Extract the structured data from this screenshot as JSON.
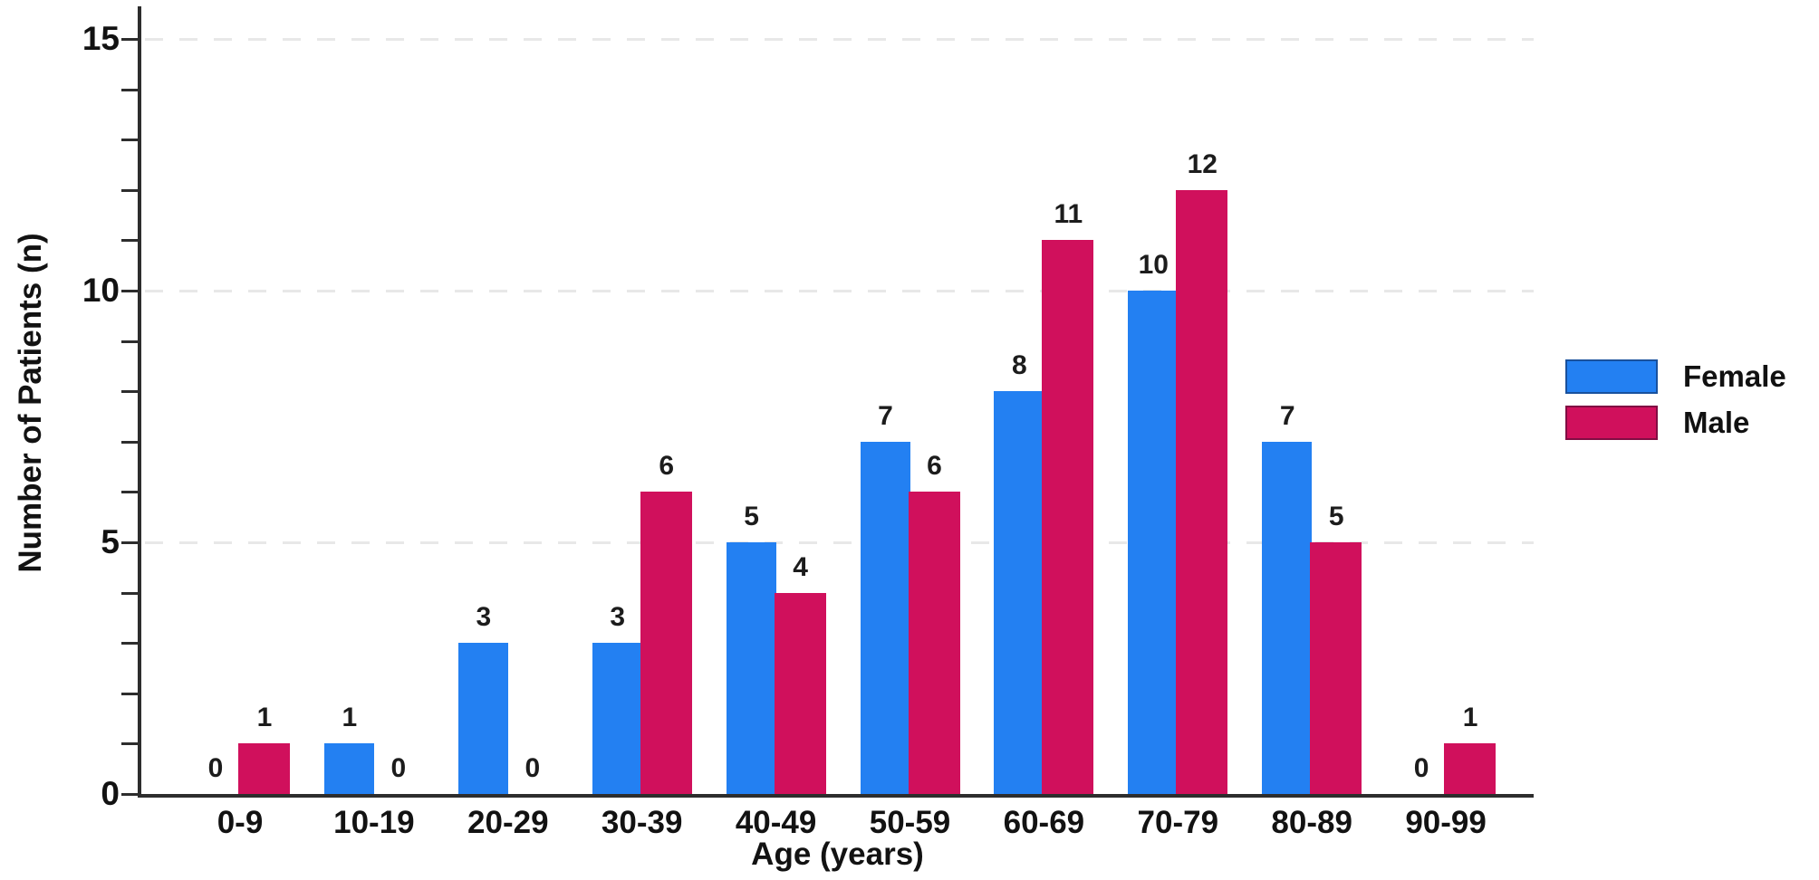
{
  "chart_data": {
    "type": "bar",
    "title": "",
    "xlabel": "Age (years)",
    "ylabel": "Number of Patients (n)",
    "categories": [
      "0-9",
      "10-19",
      "20-29",
      "30-39",
      "40-49",
      "50-59",
      "60-69",
      "70-79",
      "80-89",
      "90-99"
    ],
    "series": [
      {
        "name": "Female",
        "color": "#2380f2",
        "values": [
          0,
          1,
          3,
          3,
          5,
          7,
          8,
          10,
          7,
          0
        ]
      },
      {
        "name": "Male",
        "color": "#d0105c",
        "values": [
          1,
          0,
          0,
          6,
          4,
          6,
          11,
          12,
          5,
          1
        ]
      }
    ],
    "ylim": [
      0,
      15
    ],
    "ytick_labeled": [
      0,
      5,
      10,
      15
    ],
    "ytick_minor_step": 1,
    "grid": {
      "horizontal_at": [
        5,
        10,
        15
      ],
      "style": "dashed",
      "color": "#e8e8e8"
    },
    "legend_position": "right",
    "bar_value_labels": true,
    "axis_color": "#2d2d2d"
  }
}
